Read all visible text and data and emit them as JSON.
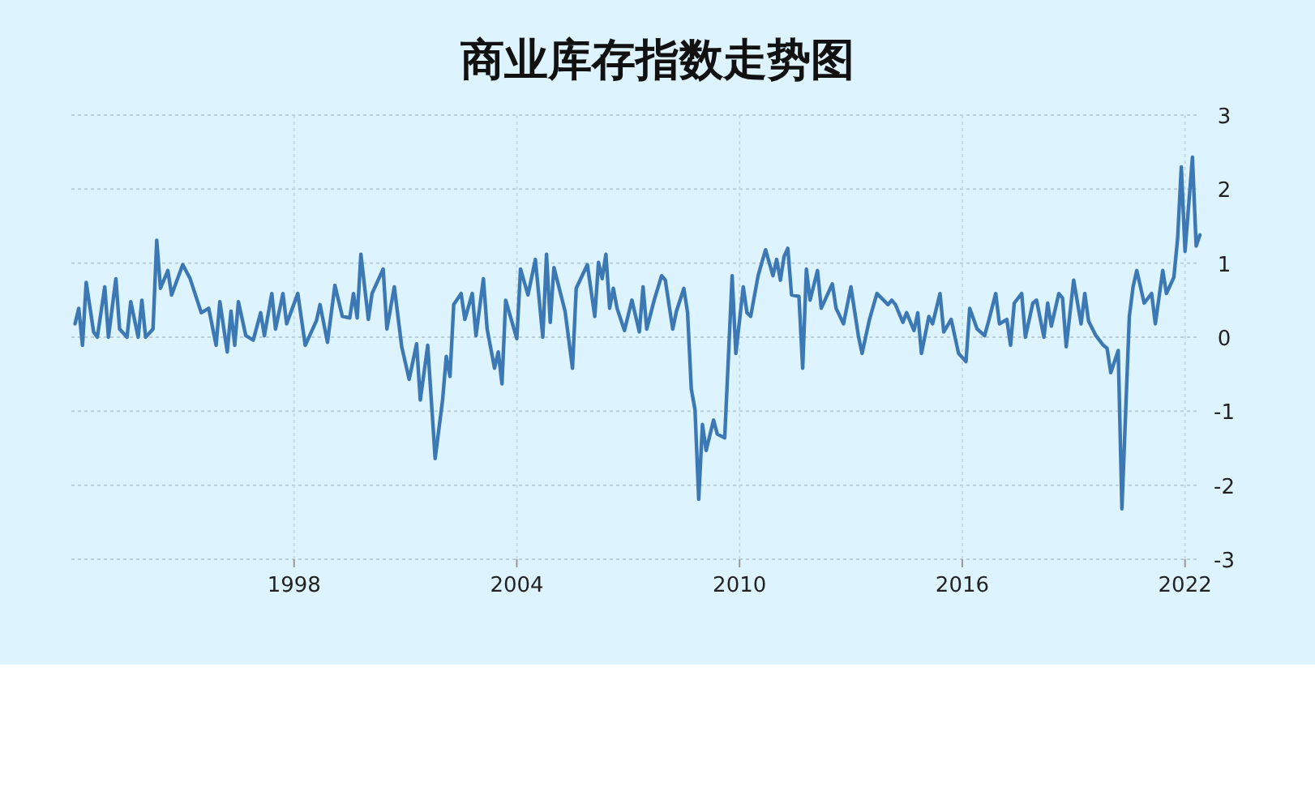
{
  "chart_data": {
    "type": "line",
    "title": "商业库存指数走势图",
    "xlim": [
      1992.0,
      2022.4
    ],
    "xticks": [
      1998,
      2004,
      2010,
      2016,
      2022
    ],
    "ylim": [
      -3,
      3
    ],
    "yticks": [
      -3,
      -2,
      -1,
      0,
      1,
      2,
      3
    ],
    "grid": true,
    "series": [
      {
        "color": "#3b78b4",
        "x": [
          1992.1,
          1992.2,
          1992.3,
          1992.4,
          1992.6,
          1992.7,
          1992.9,
          1993.0,
          1993.2,
          1993.3,
          1993.5,
          1993.6,
          1993.8,
          1993.9,
          1994.0,
          1994.2,
          1994.3,
          1994.4,
          1994.6,
          1994.7,
          1995.0,
          1995.2,
          1995.5,
          1995.7,
          1995.9,
          1996.0,
          1996.2,
          1996.3,
          1996.4,
          1996.5,
          1996.7,
          1996.9,
          1997.1,
          1997.2,
          1997.4,
          1997.5,
          1997.7,
          1997.8,
          1998.1,
          1998.3,
          1998.6,
          1998.7,
          1998.9,
          1999.1,
          1999.3,
          1999.5,
          1999.6,
          1999.7,
          1999.8,
          2000.0,
          2000.1,
          2000.4,
          2000.5,
          2000.7,
          2000.9,
          2001.1,
          2001.3,
          2001.4,
          2001.6,
          2001.8,
          2002.0,
          2002.1,
          2002.2,
          2002.3,
          2002.5,
          2002.6,
          2002.8,
          2002.9,
          2003.1,
          2003.2,
          2003.4,
          2003.5,
          2003.6,
          2003.7,
          2004.0,
          2004.1,
          2004.3,
          2004.5,
          2004.7,
          2004.8,
          2004.9,
          2005.0,
          2005.3,
          2005.5,
          2005.6,
          2005.9,
          2006.1,
          2006.2,
          2006.3,
          2006.4,
          2006.5,
          2006.6,
          2006.7,
          2006.9,
          2007.1,
          2007.3,
          2007.4,
          2007.5,
          2007.7,
          2007.9,
          2008.0,
          2008.2,
          2008.3,
          2008.5,
          2008.6,
          2008.7,
          2008.8,
          2008.9,
          2009.0,
          2009.1,
          2009.3,
          2009.4,
          2009.6,
          2009.8,
          2009.9,
          2010.1,
          2010.2,
          2010.3,
          2010.5,
          2010.7,
          2010.9,
          2011.0,
          2011.1,
          2011.2,
          2011.3,
          2011.4,
          2011.6,
          2011.7,
          2011.8,
          2011.9,
          2012.1,
          2012.2,
          2012.3,
          2012.5,
          2012.6,
          2012.8,
          2013.0,
          2013.2,
          2013.3,
          2013.5,
          2013.7,
          2014.0,
          2014.1,
          2014.2,
          2014.4,
          2014.5,
          2014.7,
          2014.8,
          2014.9,
          2015.1,
          2015.2,
          2015.4,
          2015.5,
          2015.7,
          2015.9,
          2016.1,
          2016.2,
          2016.4,
          2016.6,
          2016.7,
          2016.9,
          2017.0,
          2017.2,
          2017.3,
          2017.4,
          2017.6,
          2017.7,
          2017.9,
          2018.0,
          2018.2,
          2018.3,
          2018.4,
          2018.6,
          2018.7,
          2018.8,
          2019.0,
          2019.2,
          2019.3,
          2019.4,
          2019.6,
          2019.8,
          2019.9,
          2020.0,
          2020.2,
          2020.3,
          2020.5,
          2020.6,
          2020.7,
          2020.9,
          2021.1,
          2021.2,
          2021.4,
          2021.5,
          2021.7,
          2021.8,
          2021.9,
          2022.0,
          2022.2,
          2022.3,
          2022.4
        ],
        "values": [
          0.18,
          0.39,
          -0.11,
          0.74,
          0.07,
          0,
          0.68,
          0,
          0.79,
          0.11,
          0,
          0.48,
          0,
          0.5,
          0,
          0.11,
          1.31,
          0.66,
          0.9,
          0.57,
          0.98,
          0.79,
          0.33,
          0.39,
          -0.11,
          0.48,
          -0.2,
          0.35,
          -0.11,
          0.48,
          0.02,
          -0.04,
          0.33,
          0.02,
          0.59,
          0.11,
          0.59,
          0.18,
          0.59,
          -0.11,
          0.22,
          0.44,
          -0.07,
          0.7,
          0.28,
          0.26,
          0.59,
          0.26,
          1.12,
          0.24,
          0.59,
          0.92,
          0.11,
          0.68,
          -0.13,
          -0.57,
          -0.09,
          -0.85,
          -0.11,
          -1.64,
          -0.85,
          -0.26,
          -0.53,
          0.44,
          0.59,
          0.24,
          0.59,
          0.02,
          0.79,
          0.11,
          -0.42,
          -0.2,
          -0.63,
          0.5,
          -0.02,
          0.92,
          0.57,
          1.05,
          0,
          1.12,
          0.2,
          0.94,
          0.35,
          -0.42,
          0.66,
          0.98,
          0.28,
          1.01,
          0.79,
          1.12,
          0.39,
          0.66,
          0.39,
          0.09,
          0.5,
          0.07,
          0.68,
          0.11,
          0.5,
          0.83,
          0.77,
          0.11,
          0.35,
          0.66,
          0.33,
          -0.7,
          -0.98,
          -2.19,
          -1.18,
          -1.53,
          -1.12,
          -1.31,
          -1.36,
          0.83,
          -0.22,
          0.68,
          0.33,
          0.28,
          0.83,
          1.18,
          0.83,
          1.05,
          0.77,
          1.09,
          1.2,
          0.57,
          0.55,
          -0.42,
          0.92,
          0.5,
          0.9,
          0.39,
          0.5,
          0.72,
          0.39,
          0.18,
          0.68,
          0.02,
          -0.22,
          0.24,
          0.59,
          0.44,
          0.5,
          0.44,
          0.2,
          0.33,
          0.09,
          0.33,
          -0.22,
          0.28,
          0.18,
          0.59,
          0.07,
          0.24,
          -0.22,
          -0.33,
          0.39,
          0.11,
          0.02,
          0.2,
          0.59,
          0.18,
          0.24,
          -0.11,
          0.46,
          0.59,
          0,
          0.46,
          0.5,
          0,
          0.46,
          0.15,
          0.59,
          0.53,
          -0.13,
          0.77,
          0.18,
          0.59,
          0.22,
          0.02,
          -0.11,
          -0.15,
          -0.48,
          -0.18,
          -2.32,
          0.28,
          0.68,
          0.9,
          0.46,
          0.59,
          0.18,
          0.9,
          0.59,
          0.81,
          1.33,
          2.3,
          1.16,
          2.43,
          1.23,
          1.38
        ]
      }
    ]
  }
}
